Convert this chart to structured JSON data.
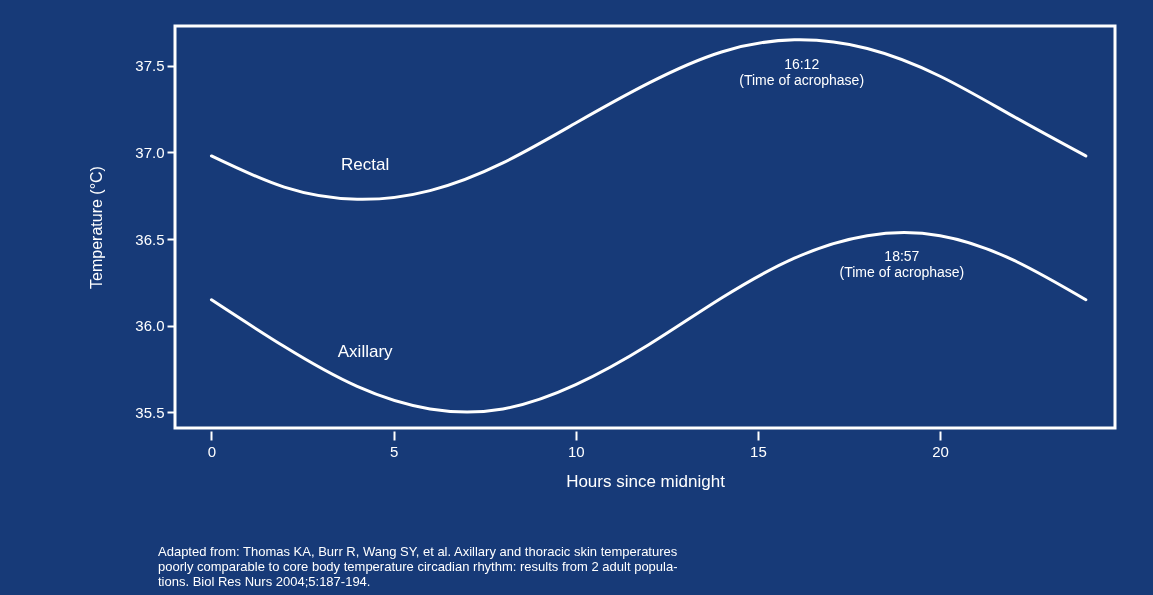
{
  "chart_data": {
    "type": "line",
    "xlabel": "Hours since midnight",
    "ylabel": "Temperature (°C)",
    "x": [
      0,
      2,
      4,
      6,
      8,
      10,
      12,
      14,
      16,
      18,
      20,
      22,
      24
    ],
    "series": [
      {
        "name": "Rectal",
        "color": "#ffffff",
        "values": [
          36.98,
          36.8,
          36.73,
          36.78,
          36.94,
          37.17,
          37.4,
          37.58,
          37.65,
          37.6,
          37.44,
          37.21,
          36.98
        ]
      },
      {
        "name": "Axillary",
        "color": "#ffffff",
        "values": [
          36.15,
          35.88,
          35.65,
          35.52,
          35.52,
          35.66,
          35.89,
          36.16,
          36.39,
          36.52,
          36.52,
          36.38,
          36.15
        ]
      }
    ],
    "xlim": [
      -1,
      24.8
    ],
    "ylim": [
      35.41,
      37.73
    ],
    "xticks": [
      0,
      5,
      10,
      15,
      20
    ],
    "yticks": [
      {
        "value": 35.5,
        "label": "35.5"
      },
      {
        "value": 36.0,
        "label": "36.0"
      },
      {
        "value": 36.5,
        "label": "36.5"
      },
      {
        "value": 37.0,
        "label": "37.0"
      },
      {
        "value": 37.5,
        "label": "37.5"
      }
    ],
    "grid": false,
    "legend": false,
    "marker": "none",
    "line_style": "solid",
    "annotations": [
      {
        "text": "16:12\n(Time of acrophase)",
        "x": 16.2,
        "y": 37.65
      },
      {
        "text": "18:57\n(Time of acrophase)",
        "x": 18.95,
        "y": 36.54
      },
      "Adapted from: Thomas KA, Burr R, Wang SY, et al. Axillary and thoracic skin temperatures\npoorly comparable to core body temperature circadian rhythm: results from 2 adult popula-\ntions. Biol Res Nurs 2004;5:187-194."
    ]
  }
}
